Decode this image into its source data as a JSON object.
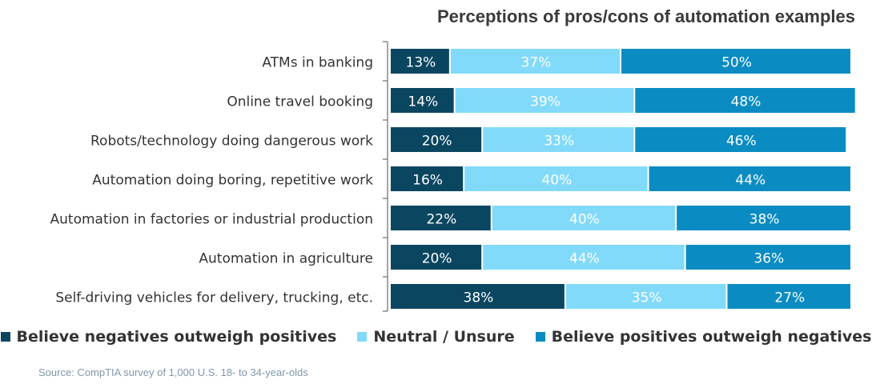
{
  "chart_data": {
    "type": "bar",
    "orientation": "horizontal",
    "stacked": true,
    "percent": true,
    "title": "Perceptions of pros/cons of automation examples",
    "categories": [
      "ATMs in banking",
      "Online travel booking",
      "Robots/technology doing dangerous work",
      "Automation doing boring, repetitive work",
      "Automation in factories or industrial production",
      "Automation in agriculture",
      "Self-driving vehicles for delivery, trucking, etc."
    ],
    "series": [
      {
        "name": "Believe negatives outweigh positives",
        "color": "#0b4660",
        "values": [
          13,
          14,
          20,
          16,
          22,
          20,
          38
        ]
      },
      {
        "name": "Neutral / Unsure",
        "color": "#82dafb",
        "values": [
          37,
          39,
          33,
          40,
          40,
          44,
          35
        ]
      },
      {
        "name": "Believe positives outweigh negatives",
        "color": "#0a8cc2",
        "values": [
          50,
          48,
          46,
          44,
          38,
          36,
          27
        ]
      }
    ],
    "xlim": [
      0,
      100
    ],
    "grid": false,
    "legend_position": "bottom"
  },
  "source": "Source: CompTIA survey of 1,000 U.S. 18- to 34-year-olds"
}
